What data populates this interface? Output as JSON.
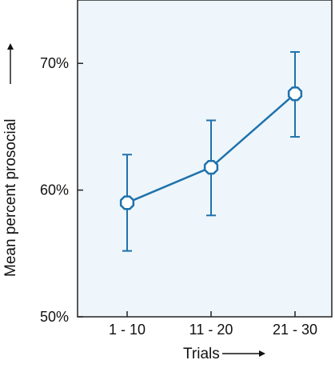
{
  "chart_data": {
    "type": "line",
    "xlabel": "Trials",
    "ylabel": "Mean percent prosocial",
    "categories": [
      "1 - 10",
      "11 - 20",
      "21 - 30"
    ],
    "series": [
      {
        "values": [
          59.0,
          61.8,
          67.6
        ],
        "error_low": [
          55.2,
          58.0,
          64.2
        ],
        "error_high": [
          62.8,
          65.5,
          70.9
        ]
      }
    ],
    "ylim": [
      50,
      75
    ],
    "yticks": [
      50,
      60,
      70
    ],
    "ytick_labels": [
      "50%",
      "60%",
      "70%"
    ],
    "grid": false,
    "legend": "none",
    "colors": {
      "plot_background": "#eef6fb",
      "series": "#1f72ad",
      "marker_fill": "#ffffff",
      "axis": "#222222",
      "text": "#111111"
    }
  }
}
